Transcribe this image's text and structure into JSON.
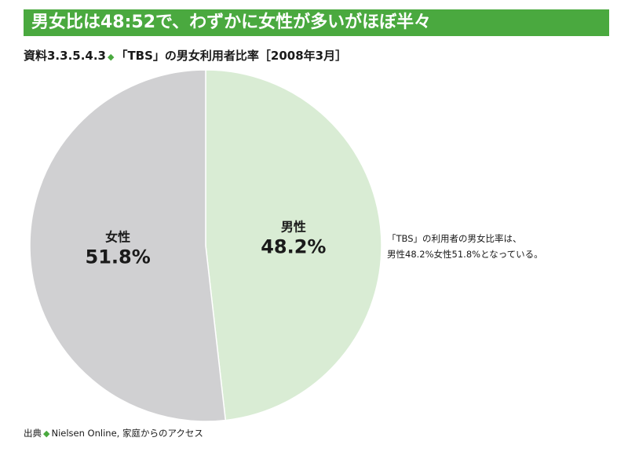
{
  "banner": {
    "title": "男女比は48:52で、わずかに女性が多いがほぼ半々"
  },
  "subtitle": {
    "prefix": "資料3.3.5.4.3",
    "diamond": "◆",
    "text": "「TBS」の男女利用者比率［2008年3月］"
  },
  "colors": {
    "banner": "#4aa93f",
    "male": "#d9ecd4",
    "female": "#d0d0d2",
    "divider": "#ffffff"
  },
  "chart_data": {
    "type": "pie",
    "categories": [
      "男性",
      "女性"
    ],
    "values": [
      48.2,
      51.8
    ],
    "value_labels": [
      "48.2%",
      "51.8%"
    ],
    "start": "12 o'clock",
    "direction": "clockwise"
  },
  "note": {
    "line1": "「TBS」の利用者の男女比率は、",
    "line2": "男性48.2%女性51.8%となっている。"
  },
  "source": {
    "prefix": "出典",
    "diamond": "◆",
    "text": "Nielsen Online, 家庭からのアクセス"
  }
}
